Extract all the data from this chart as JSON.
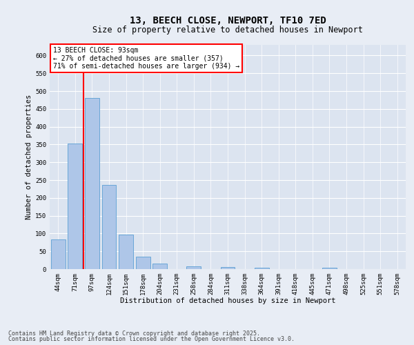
{
  "title_line1": "13, BEECH CLOSE, NEWPORT, TF10 7ED",
  "title_line2": "Size of property relative to detached houses in Newport",
  "xlabel": "Distribution of detached houses by size in Newport",
  "ylabel": "Number of detached properties",
  "categories": [
    "44sqm",
    "71sqm",
    "97sqm",
    "124sqm",
    "151sqm",
    "178sqm",
    "204sqm",
    "231sqm",
    "258sqm",
    "284sqm",
    "311sqm",
    "338sqm",
    "364sqm",
    "391sqm",
    "418sqm",
    "445sqm",
    "471sqm",
    "498sqm",
    "525sqm",
    "551sqm",
    "578sqm"
  ],
  "values": [
    84,
    352,
    481,
    236,
    97,
    35,
    15,
    0,
    8,
    0,
    5,
    0,
    3,
    0,
    0,
    0,
    3,
    0,
    0,
    0,
    0
  ],
  "bar_color": "#aec6e8",
  "bar_edge_color": "#5a9fd4",
  "vline_x": 1.5,
  "vline_color": "red",
  "annotation_box_text": "13 BEECH CLOSE: 93sqm\n← 27% of detached houses are smaller (357)\n71% of semi-detached houses are larger (934) →",
  "ylim": [
    0,
    630
  ],
  "yticks": [
    0,
    50,
    100,
    150,
    200,
    250,
    300,
    350,
    400,
    450,
    500,
    550,
    600
  ],
  "bg_color": "#e8edf5",
  "plot_bg_color": "#dce4f0",
  "grid_color": "#ffffff",
  "footer_line1": "Contains HM Land Registry data © Crown copyright and database right 2025.",
  "footer_line2": "Contains public sector information licensed under the Open Government Licence v3.0.",
  "title_fontsize": 10,
  "subtitle_fontsize": 8.5,
  "axis_label_fontsize": 7.5,
  "tick_fontsize": 6.5,
  "annotation_fontsize": 7,
  "footer_fontsize": 6
}
